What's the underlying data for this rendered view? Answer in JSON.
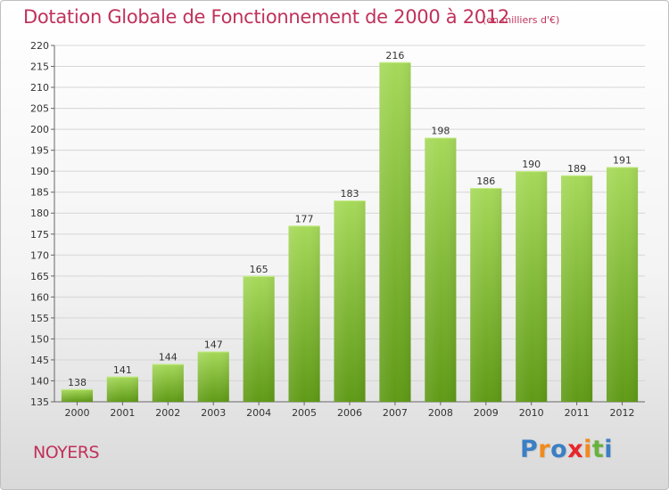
{
  "title": "Dotation Globale de Fonctionnement de 2000 à 2012",
  "subtitle": "(en milliers d'€)",
  "commune": "NOYERS",
  "logo": {
    "letters": [
      "P",
      "r",
      "o",
      "x",
      "i",
      "t",
      "i"
    ],
    "colors": [
      "#3b7fc4",
      "#f08a1c",
      "#3b7fc4",
      "#e8262b",
      "#f08a1c",
      "#6ab23e",
      "#3b7fc4"
    ]
  },
  "colors": {
    "bar_light": "#a6d95a",
    "bar_dark": "#5f9a16",
    "title": "#c0325a"
  },
  "chart_data": {
    "type": "bar",
    "categories": [
      "2000",
      "2001",
      "2002",
      "2003",
      "2004",
      "2005",
      "2006",
      "2007",
      "2008",
      "2009",
      "2010",
      "2011",
      "2012"
    ],
    "values": [
      138,
      141,
      144,
      147,
      165,
      177,
      183,
      216,
      198,
      186,
      190,
      189,
      191
    ],
    "title": "Dotation Globale de Fonctionnement de 2000 à 2012",
    "subtitle": "(en milliers d'€)",
    "xlabel": "",
    "ylabel": "",
    "ylim": [
      135,
      220
    ],
    "yticks": [
      135,
      140,
      145,
      150,
      155,
      160,
      165,
      170,
      175,
      180,
      185,
      190,
      195,
      200,
      205,
      210,
      215,
      220
    ],
    "grid": true,
    "legend": "none"
  }
}
